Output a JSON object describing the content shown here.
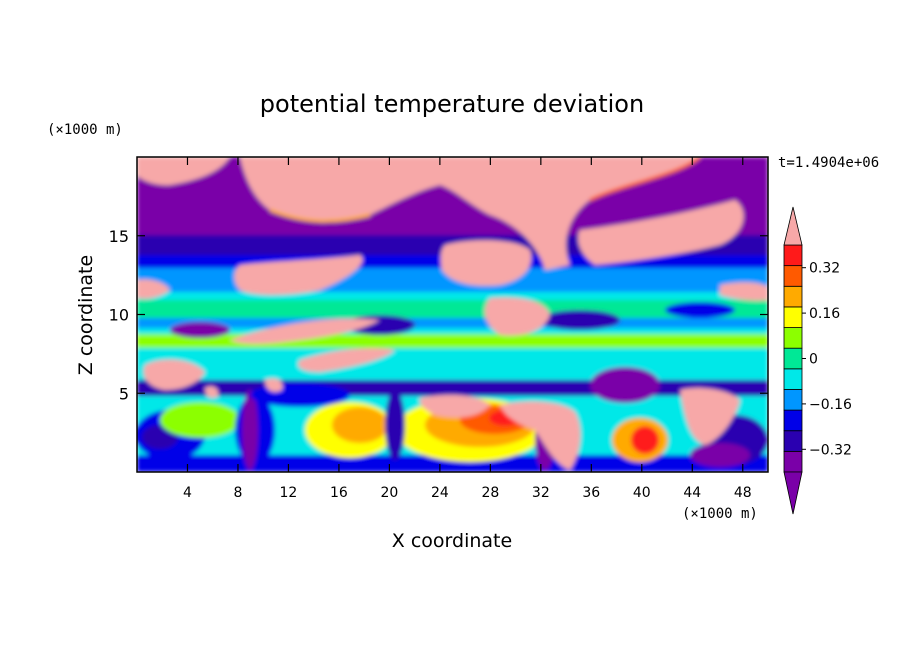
{
  "chart_data": {
    "type": "heatmap",
    "title": "potential temperature deviation",
    "time_label": "t=1.4904e+06",
    "xlabel": "X coordinate",
    "ylabel": "Z coordinate",
    "x_unit": "(×1000 m)",
    "y_unit": "(×1000 m)",
    "xlim": [
      0,
      50
    ],
    "ylim": [
      0,
      20
    ],
    "x_ticks": [
      4,
      8,
      12,
      16,
      20,
      24,
      28,
      32,
      36,
      40,
      44,
      48
    ],
    "y_ticks": [
      5,
      10,
      15
    ],
    "colorbar": {
      "levels": [
        -0.4,
        -0.32,
        -0.24,
        -0.16,
        -0.08,
        0,
        0.08,
        0.16,
        0.24,
        0.32,
        0.4
      ],
      "labels": [
        "0.32",
        "0.16",
        "0",
        "−0.16",
        "−0.32"
      ],
      "label_values": [
        0.32,
        0.16,
        0,
        -0.16,
        -0.32
      ],
      "colors": [
        "#7a00a8",
        "#2a00b0",
        "#0000e8",
        "#0096ff",
        "#00e8e8",
        "#00e896",
        "#8cff00",
        "#ffff00",
        "#ffaa00",
        "#ff5a00",
        "#ff1a1a"
      ],
      "extend_high_color": "#f7a8a8",
      "extend_low_color": "#7a00a8"
    }
  }
}
